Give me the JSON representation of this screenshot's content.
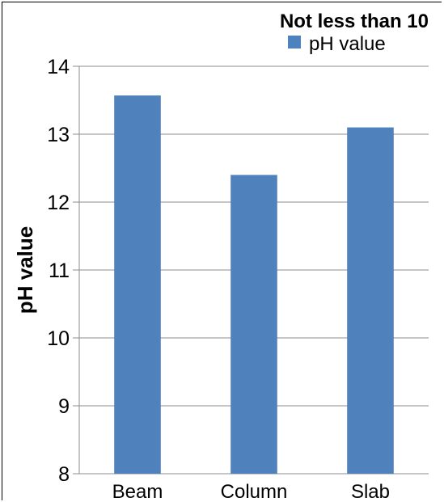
{
  "chart_data": {
    "type": "bar",
    "categories": [
      "Beam",
      "Column",
      "Slab"
    ],
    "series": [
      {
        "name": "pH value",
        "values": [
          13.57,
          12.4,
          13.1
        ],
        "color": "#4f81bd"
      }
    ],
    "title": "",
    "xlabel": "",
    "ylabel": "pH value",
    "ylim": [
      8,
      14
    ],
    "yticks": [
      8,
      9,
      10,
      11,
      12,
      13,
      14
    ],
    "grid": true,
    "legend": {
      "title": "Not less than 10",
      "placement": "top-right"
    }
  }
}
